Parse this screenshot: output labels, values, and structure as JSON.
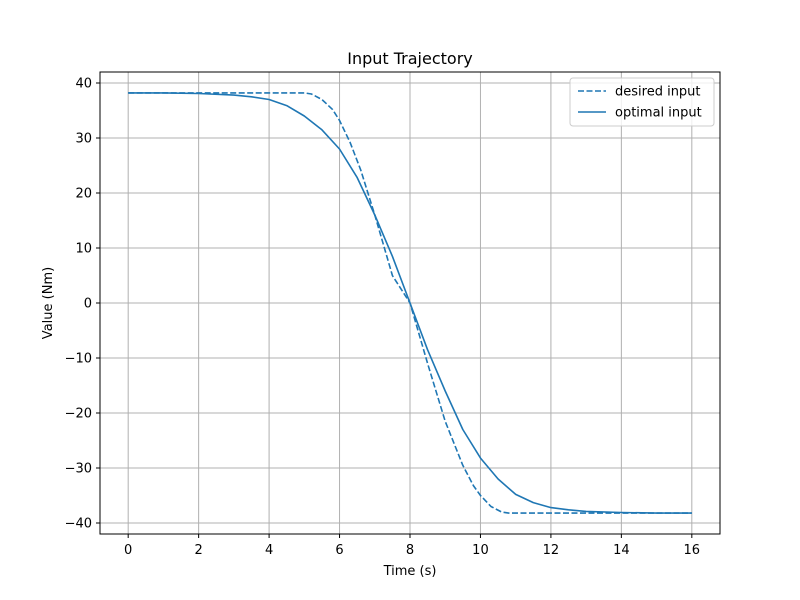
{
  "chart_data": {
    "type": "line",
    "title": "Input Trajectory",
    "xlabel": "Time (s)",
    "ylabel": "Value (Nm)",
    "xlim": [
      -0.8,
      16.8
    ],
    "ylim": [
      -42,
      42
    ],
    "xticks": [
      0,
      2,
      4,
      6,
      8,
      10,
      12,
      14,
      16
    ],
    "yticks": [
      40,
      30,
      20,
      10,
      0,
      -10,
      -20,
      -30,
      -40
    ],
    "xtick_labels": [
      "0",
      "2",
      "4",
      "6",
      "8",
      "10",
      "12",
      "14",
      "16"
    ],
    "ytick_labels": [
      "40",
      "30",
      "20",
      "10",
      "0",
      "−10",
      "−20",
      "−30",
      "−40"
    ],
    "grid": true,
    "legend_position": "top-right",
    "series": [
      {
        "name": "desired input",
        "style": "dashed",
        "color": "#1f77b4",
        "x": [
          0,
          1,
          2,
          3,
          4,
          5,
          5.2,
          5.5,
          5.8,
          6.0,
          6.3,
          6.6,
          7.0,
          7.5,
          8.0,
          8.5,
          9.0,
          9.5,
          9.8,
          10.0,
          10.3,
          10.6,
          10.8,
          11,
          12,
          13,
          14,
          15,
          16
        ],
        "y": [
          38.2,
          38.2,
          38.2,
          38.2,
          38.2,
          38.2,
          38.0,
          37.0,
          35.2,
          33.2,
          29.2,
          24.2,
          16.0,
          5.0,
          0.0,
          -11.0,
          -21.5,
          -29.5,
          -33.2,
          -35.0,
          -37.0,
          -38.0,
          -38.2,
          -38.2,
          -38.2,
          -38.2,
          -38.2,
          -38.2,
          -38.2
        ]
      },
      {
        "name": "optimal input",
        "style": "solid",
        "color": "#1f77b4",
        "x": [
          0,
          1,
          2,
          3,
          3.5,
          4,
          4.5,
          5,
          5.5,
          6,
          6.5,
          7,
          7.5,
          8,
          8.5,
          9,
          9.5,
          10,
          10.5,
          11,
          11.5,
          12,
          12.5,
          13,
          14,
          15,
          16
        ],
        "y": [
          38.2,
          38.2,
          38.1,
          37.8,
          37.5,
          37.0,
          35.9,
          34.0,
          31.5,
          28.0,
          22.8,
          16.0,
          8.5,
          0.0,
          -8.5,
          -16.0,
          -23.0,
          -28.2,
          -32.0,
          -34.8,
          -36.3,
          -37.2,
          -37.6,
          -37.9,
          -38.1,
          -38.2,
          -38.2
        ]
      }
    ]
  }
}
